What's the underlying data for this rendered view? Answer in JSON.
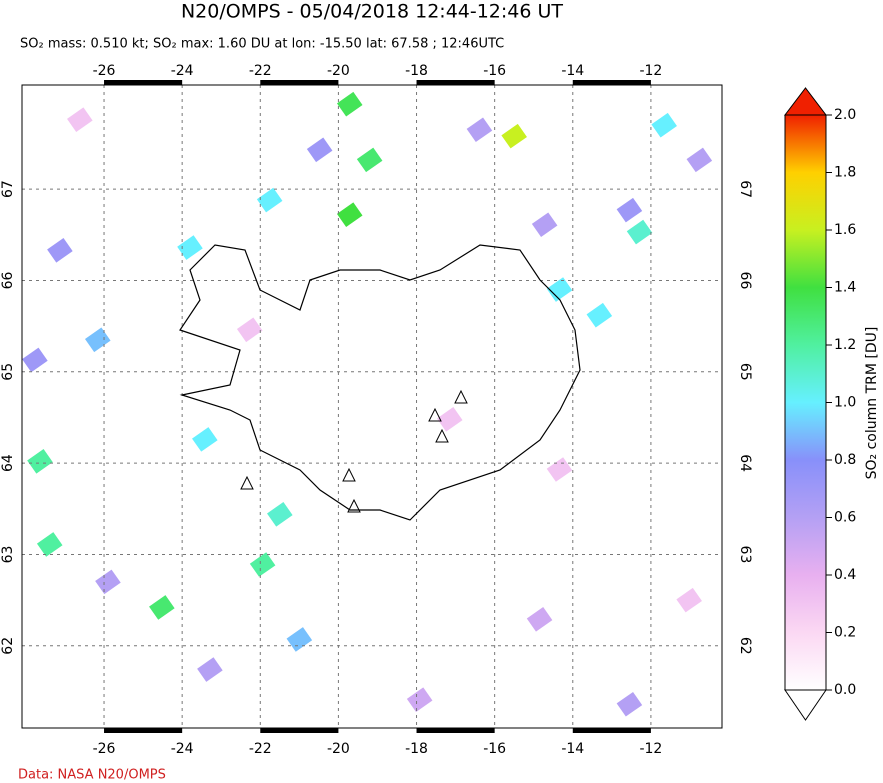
{
  "chart_data": {
    "type": "map",
    "title": "N20/OMPS - 05/04/2018 12:44-12:46 UT",
    "subtitle": "SO₂ mass: 0.510 kt; SO₂ max: 1.60 DU at lon: -15.50 lat: 67.58 ; 12:46UTC",
    "xlim": [
      -28.1,
      -10.18
    ],
    "ylim": [
      61.1,
      68.14
    ],
    "xticks": [
      -26,
      -24,
      -22,
      -20,
      -18,
      -16,
      -14,
      -12
    ],
    "yticks": [
      62,
      63,
      64,
      65,
      66,
      67
    ],
    "grid": true,
    "points": {
      "lon": [
        -19.71,
        -15.5,
        -19.2,
        -19.71,
        -11.66,
        -12.29,
        -21.76,
        -23.8,
        -26.16,
        -27.64,
        -27.39,
        -24.52,
        -21.94,
        -21.5,
        -23.42,
        -14.34,
        -13.32,
        -27.13,
        -27.77,
        -12.55,
        -10.76,
        -16.39,
        -20.48,
        -14.72,
        -25.9,
        -12.55,
        -14.85,
        -17.92,
        -23.29,
        -21.0,
        -26.62,
        -17.15,
        -22.27,
        -11.02,
        -14.34
      ],
      "lat": [
        67.93,
        67.58,
        67.32,
        66.72,
        67.7,
        66.53,
        66.88,
        66.36,
        65.35,
        64.02,
        63.11,
        62.42,
        62.89,
        63.44,
        64.26,
        65.9,
        65.62,
        66.33,
        65.13,
        66.77,
        67.32,
        67.65,
        67.43,
        66.61,
        62.7,
        61.36,
        62.29,
        61.41,
        61.74,
        62.07,
        67.76,
        64.48,
        65.46,
        62.5,
        63.93
      ],
      "values": [
        1.35,
        1.6,
        1.3,
        1.4,
        1.0,
        1.1,
        1.0,
        1.0,
        0.9,
        1.2,
        1.2,
        1.3,
        1.2,
        1.1,
        1.0,
        1.0,
        1.0,
        0.7,
        0.7,
        0.7,
        0.6,
        0.6,
        0.7,
        0.6,
        0.6,
        0.6,
        0.5,
        0.5,
        0.6,
        0.9,
        0.3,
        0.3,
        0.3,
        0.3,
        0.3
      ]
    },
    "colorbar": {
      "label": "SO₂ column TRM [DU]",
      "lim": [
        0,
        2
      ],
      "ticks": [
        {
          "value": 0,
          "label": "0.0"
        },
        {
          "value": 0.2,
          "label": "0.2"
        },
        {
          "value": 0.4,
          "label": "0.4"
        },
        {
          "value": 0.6,
          "label": "0.6"
        },
        {
          "value": 0.8,
          "label": "0.8"
        },
        {
          "value": 1.0,
          "label": "1.0"
        },
        {
          "value": 1.2,
          "label": "1.2"
        },
        {
          "value": 1.4,
          "label": "1.4"
        },
        {
          "value": 1.6,
          "label": "1.6"
        },
        {
          "value": 1.8,
          "label": "1.8"
        },
        {
          "value": 2.0,
          "label": "2.0"
        }
      ]
    },
    "credit": "Data: NASA N20/OMPS"
  }
}
